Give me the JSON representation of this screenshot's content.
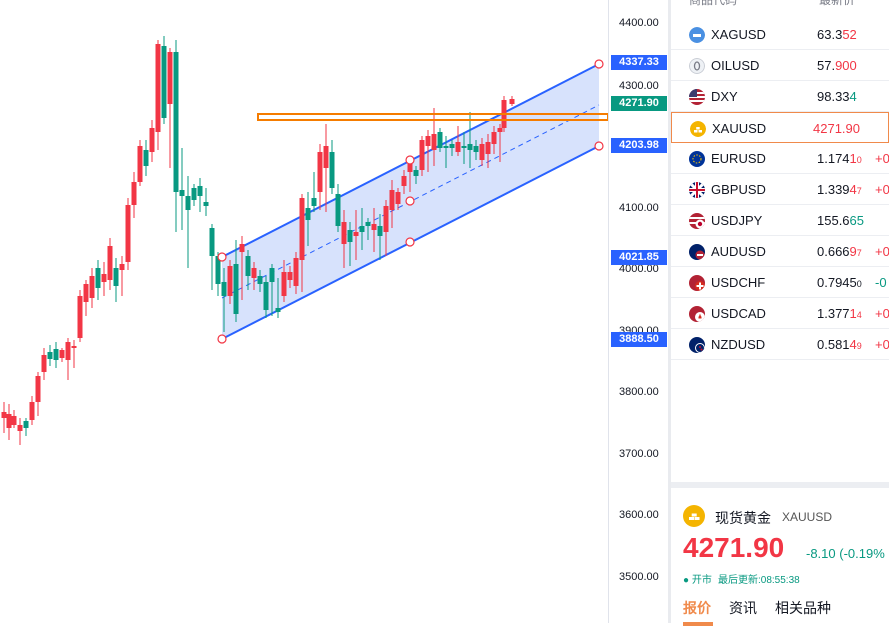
{
  "colors": {
    "up": "#f23645",
    "down": "#089981",
    "channel_line": "#2962ff",
    "channel_fill": "#c9d8fb",
    "resistance": "#f57c00",
    "accent_orange": "#f08a4b"
  },
  "price_axis": {
    "ticks": [
      "4400.00",
      "4300.00",
      "4100.00",
      "4000.00",
      "3900.00",
      "3800.00",
      "3700.00",
      "3600.00",
      "3500.00"
    ],
    "labels": [
      {
        "value": "4337.33",
        "color": "#2962ff"
      },
      {
        "value": "4271.90",
        "color": "#089981"
      },
      {
        "value": "4203.98",
        "color": "#2962ff"
      },
      {
        "value": "4021.85",
        "color": "#2962ff"
      },
      {
        "value": "3888.50",
        "color": "#2962ff"
      }
    ]
  },
  "watchlist": {
    "header": {
      "symbol_col": "商品代码",
      "price_col": "最新价"
    },
    "rows": [
      {
        "symbol": "XAGUSD",
        "icon": "silver-icon",
        "price_main": "63.3",
        "price_hi": "52",
        "price_sm": "",
        "price_hi_color": "#f23645",
        "change": "",
        "change_color": "#f23645"
      },
      {
        "symbol": "OILUSD",
        "icon": "oil-icon",
        "price_main": "57.",
        "price_hi": "900",
        "price_sm": "",
        "price_hi_color": "#f23645",
        "change": "",
        "change_color": "#f23645"
      },
      {
        "symbol": "DXY",
        "icon": "us-flag-icon",
        "price_main": "98.33",
        "price_hi": "4",
        "price_sm": "",
        "price_hi_color": "#089981",
        "change": "",
        "change_color": "#089981"
      },
      {
        "symbol": "XAUUSD",
        "icon": "gold-icon",
        "price_main": "",
        "price_hi": "4271.90",
        "price_sm": "",
        "price_hi_color": "#f23645",
        "change": "",
        "change_color": "#f23645",
        "selected": true
      },
      {
        "symbol": "EURUSD",
        "icon": "eu-flag-icon",
        "price_main": "1.174",
        "price_hi": "1",
        "price_sm": "0",
        "price_hi_color": "#f23645",
        "change": "+0",
        "change_color": "#f23645"
      },
      {
        "symbol": "GBPUSD",
        "icon": "uk-flag-icon",
        "price_main": "1.339",
        "price_hi": "4",
        "price_sm": "7",
        "price_hi_color": "#f23645",
        "change": "+0",
        "change_color": "#f23645"
      },
      {
        "symbol": "USDJPY",
        "icon": "us-jp-flag-icon",
        "price_main": "155.6",
        "price_hi": "65",
        "price_sm": "",
        "price_hi_color": "#089981",
        "change": "",
        "change_color": "#089981"
      },
      {
        "symbol": "AUDUSD",
        "icon": "au-flag-icon",
        "price_main": "0.666",
        "price_hi": "9",
        "price_sm": "7",
        "price_hi_color": "#f23645",
        "change": "+0",
        "change_color": "#f23645"
      },
      {
        "symbol": "USDCHF",
        "icon": "ch-flag-icon",
        "price_main": "0.794",
        "price_hi": "5",
        "price_sm": "0",
        "price_hi_color": "#131722",
        "change": "-0",
        "change_color": "#089981"
      },
      {
        "symbol": "USDCAD",
        "icon": "ca-flag-icon",
        "price_main": "1.377",
        "price_hi": "1",
        "price_sm": "4",
        "price_hi_color": "#f23645",
        "change": "+0",
        "change_color": "#f23645"
      },
      {
        "symbol": "NZDUSD",
        "icon": "nz-flag-icon",
        "price_main": "0.581",
        "price_hi": "4",
        "price_sm": "9",
        "price_hi_color": "#f23645",
        "change": "+0",
        "change_color": "#f23645"
      }
    ]
  },
  "quote": {
    "name": "现货黄金",
    "symbol": "XAUUSD",
    "price": "4271.90",
    "change": "-8.10 (-0.19%",
    "market_status": "● 开市",
    "updated": "最后更新:08:55:38",
    "tabs": [
      "报价",
      "资讯",
      "相关品种"
    ],
    "active_tab": 0
  }
}
